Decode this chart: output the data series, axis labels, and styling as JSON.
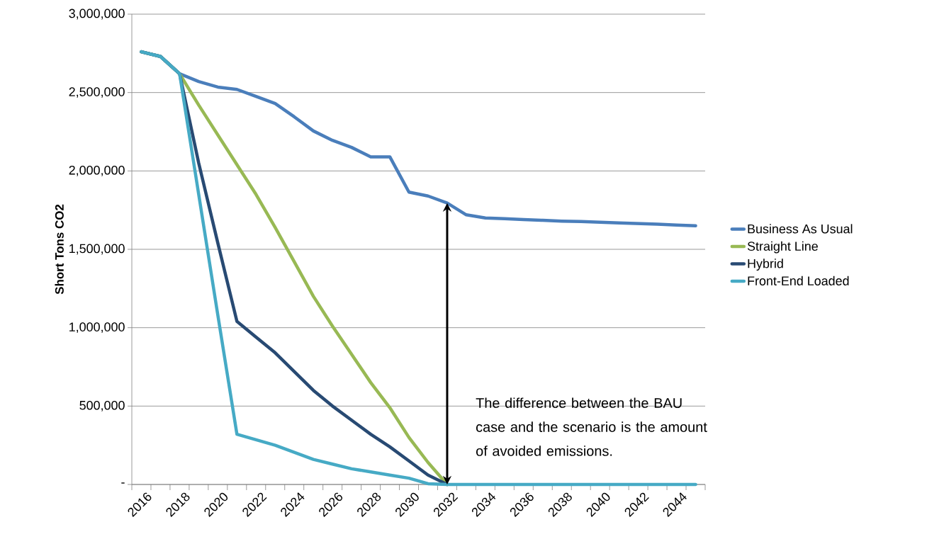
{
  "chart_data": {
    "type": "line",
    "ylabel": "Short Tons CO2",
    "categories": [
      "2016",
      null,
      "2018",
      null,
      "2020",
      null,
      "2022",
      null,
      "2024",
      null,
      "2026",
      null,
      "2028",
      null,
      "2030",
      null,
      "2032",
      null,
      "2034",
      null,
      "2036",
      null,
      "2038",
      null,
      "2040",
      null,
      "2042",
      null,
      "2044",
      null
    ],
    "series": [
      {
        "name": "Business As Usual",
        "color": "#4a7ebb",
        "values": [
          2760000,
          2730000,
          2620000,
          2570000,
          2535000,
          2520000,
          2475000,
          2430000,
          2345000,
          2255000,
          2195000,
          2150000,
          2090000,
          2090000,
          1865000,
          1840000,
          1795000,
          1720000,
          1700000,
          1695000,
          1690000,
          1685000,
          1680000,
          1677000,
          1673000,
          1668000,
          1664000,
          1660000,
          1655000,
          1650000
        ]
      },
      {
        "name": "Straight Line",
        "color": "#98b954",
        "values": [
          2760000,
          2730000,
          2620000,
          2420000,
          2230000,
          2040000,
          1850000,
          1640000,
          1420000,
          1200000,
          1010000,
          830000,
          650000,
          490000,
          300000,
          140000,
          0,
          null,
          null,
          null,
          null,
          null,
          null,
          null,
          null,
          null,
          null,
          null,
          null,
          null
        ]
      },
      {
        "name": "Hybrid",
        "color": "#284a73",
        "values": [
          2760000,
          2730000,
          2620000,
          2050000,
          1540000,
          1040000,
          940000,
          840000,
          720000,
          600000,
          500000,
          410000,
          320000,
          240000,
          150000,
          60000,
          0,
          null,
          null,
          null,
          null,
          null,
          null,
          null,
          null,
          null,
          null,
          null,
          null,
          null
        ]
      },
      {
        "name": "Front-End Loaded",
        "color": "#46aac5",
        "values": [
          2760000,
          2730000,
          2620000,
          1850000,
          1080000,
          320000,
          285000,
          250000,
          205000,
          160000,
          130000,
          100000,
          80000,
          60000,
          40000,
          5000,
          0,
          0,
          0,
          0,
          0,
          0,
          0,
          0,
          0,
          0,
          0,
          0,
          0,
          0
        ]
      }
    ],
    "ylim": [
      0,
      3000000
    ],
    "yticks": [
      {
        "value": 0,
        "label": "-"
      },
      {
        "value": 500000,
        "label": "500,000"
      },
      {
        "value": 1000000,
        "label": "1,000,000"
      },
      {
        "value": 1500000,
        "label": "1,500,000"
      },
      {
        "value": 2000000,
        "label": "2,000,000"
      },
      {
        "value": 2500000,
        "label": "2,500,000"
      },
      {
        "value": 3000000,
        "label": "3,000,000"
      }
    ],
    "grid": "y",
    "legend": "right",
    "annotations": [
      "The difference between the BAU case and the scenario is the amount of avoided emissions."
    ]
  }
}
